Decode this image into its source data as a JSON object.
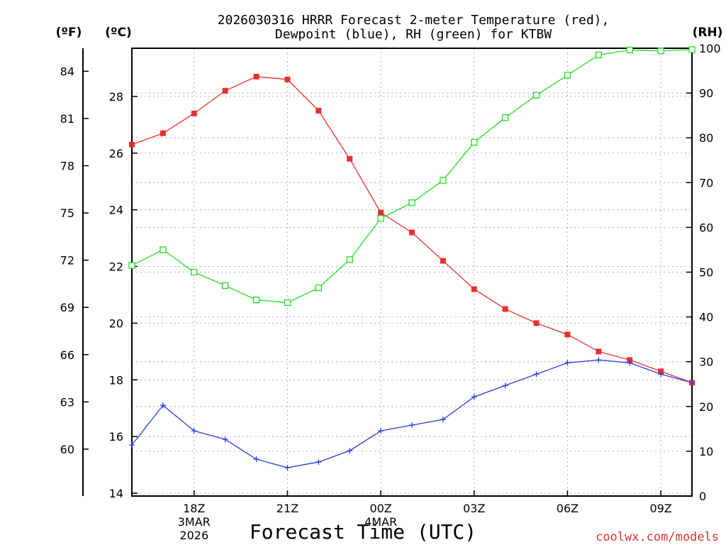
{
  "chart_data": {
    "type": "line",
    "title_line1": "2026030316 HRRR Forecast 2-meter Temperature (red),",
    "title_line2": "Dewpoint (blue), RH (green) for KTBW",
    "xlabel": "Forecast Time (UTC)",
    "credit": "coolwx.com/models",
    "unit_f": "(ºF)",
    "unit_c": "(ºC)",
    "unit_rh": "(RH)",
    "x_hours": [
      16,
      17,
      18,
      19,
      20,
      21,
      22,
      23,
      24,
      25,
      26,
      27,
      28,
      29,
      30,
      31,
      32,
      33,
      34
    ],
    "x_ticks": [
      {
        "h": 18,
        "lines": [
          "18Z",
          "3MAR",
          "2026"
        ]
      },
      {
        "h": 21,
        "lines": [
          "21Z"
        ]
      },
      {
        "h": 24,
        "lines": [
          "00Z",
          "4MAR"
        ]
      },
      {
        "h": 27,
        "lines": [
          "03Z"
        ]
      },
      {
        "h": 30,
        "lines": [
          "06Z"
        ]
      },
      {
        "h": 33,
        "lines": [
          "09Z"
        ]
      }
    ],
    "xlim": [
      16,
      34
    ],
    "celsius_axis": {
      "ylim": [
        13.9,
        29.7
      ],
      "ticks": [
        14,
        16,
        18,
        20,
        22,
        24,
        26,
        28
      ]
    },
    "fahrenheit_ticks": [
      60,
      63,
      66,
      69,
      72,
      75,
      78,
      81,
      84
    ],
    "rh_axis": {
      "ylim": [
        0,
        100
      ],
      "ticks": [
        0,
        10,
        20,
        30,
        40,
        50,
        60,
        70,
        80,
        90,
        100
      ]
    },
    "colors": {
      "temperature": "#e83030",
      "dewpoint": "#2a3ee0",
      "rh": "#22dd22"
    },
    "series": [
      {
        "name": "Temperature",
        "units": "C",
        "marker": "filled-square",
        "color_key": "temperature",
        "values": [
          26.3,
          26.7,
          27.4,
          28.2,
          28.7,
          28.6,
          27.5,
          25.8,
          23.9,
          23.2,
          22.2,
          21.2,
          20.5,
          20.0,
          19.6,
          19.0,
          18.7,
          18.3,
          17.9
        ]
      },
      {
        "name": "Dewpoint",
        "units": "C",
        "marker": "plus",
        "color_key": "dewpoint",
        "values": [
          15.7,
          17.1,
          16.2,
          15.9,
          15.2,
          14.9,
          15.1,
          15.5,
          16.2,
          16.4,
          16.6,
          17.4,
          17.8,
          18.2,
          18.6,
          18.7,
          18.6,
          18.2,
          17.9
        ]
      },
      {
        "name": "RH",
        "units": "%",
        "marker": "open-square",
        "color_key": "rh",
        "values": [
          51.5,
          55,
          50,
          47,
          43.8,
          43.2,
          46.5,
          52.8,
          62,
          65.5,
          70.5,
          79,
          84.5,
          89.5,
          94,
          98.5,
          99.6,
          99.4,
          99.7
        ]
      }
    ]
  }
}
